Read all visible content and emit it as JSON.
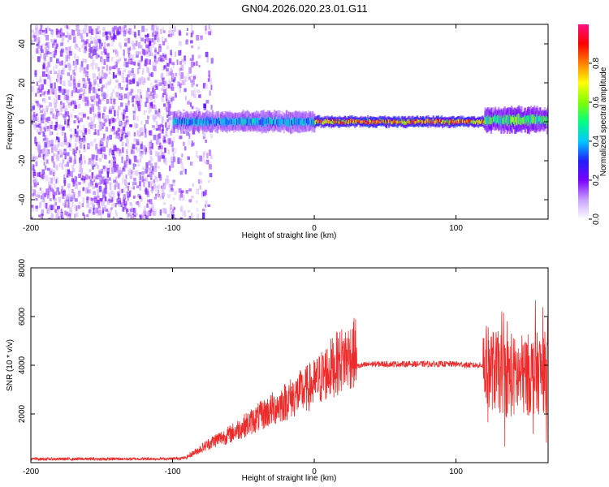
{
  "title": "GN04.2026.020.23.01.G11",
  "chart_data": [
    {
      "type": "heatmap",
      "name": "spectrogram",
      "xlabel": "Height of straight line (km)",
      "ylabel": "Frequency (Hz)",
      "xlim": [
        -200,
        165
      ],
      "ylim": [
        -50,
        50
      ],
      "xticks": [
        -200,
        -100,
        0,
        100
      ],
      "yticks": [
        -40,
        -20,
        0,
        20,
        40
      ],
      "colorbar": {
        "label": "Normalized spectral amplitude",
        "range": [
          0,
          1
        ],
        "ticks": [
          "0.0",
          "0.2",
          "0.4",
          "0.6",
          "0.8"
        ],
        "colormap": [
          "#ffffff",
          "#c8a0ff",
          "#7a00ff",
          "#2020ff",
          "#00c8ff",
          "#00ff80",
          "#80ff00",
          "#ffff00",
          "#ff8000",
          "#ff0000",
          "#ff1080"
        ]
      },
      "regions": [
        {
          "x_from": -200,
          "x_to": -100,
          "description": "broadband noise",
          "amplitude": 0.1
        },
        {
          "x_from": -100,
          "x_to": -75,
          "description": "fading noise",
          "amplitude": 0.05
        },
        {
          "x_from": -100,
          "x_to": 0,
          "center_hz": 0,
          "halfwidth_hz": 4,
          "amplitude": 0.45
        },
        {
          "x_from": 0,
          "x_to": 120,
          "center_hz": 0,
          "halfwidth_hz": 2,
          "amplitude": 0.9
        },
        {
          "x_from": 120,
          "x_to": 165,
          "center_hz": 1,
          "halfwidth_hz": 5,
          "amplitude": 0.6
        }
      ]
    },
    {
      "type": "line",
      "name": "snr",
      "xlabel": "Height of straight line (km)",
      "ylabel": "SNR (10 * v/v)",
      "xlim": [
        -200,
        165
      ],
      "ylim": [
        0,
        8000
      ],
      "xticks": [
        -200,
        -100,
        0,
        100
      ],
      "yticks": [
        2000,
        4000,
        6000,
        8000
      ],
      "color": "#ee2b2b",
      "series": [
        {
          "name": "SNR",
          "x": [
            -200,
            -150,
            -100,
            -90,
            -80,
            -70,
            -60,
            -50,
            -40,
            -30,
            -20,
            -10,
            0,
            10,
            20,
            30,
            40,
            60,
            80,
            100,
            110,
            119,
            120,
            130,
            140,
            150,
            160,
            165
          ],
          "y": [
            150,
            150,
            160,
            200,
            500,
            800,
            1000,
            1300,
            1600,
            1900,
            2200,
            2500,
            2800,
            3300,
            3700,
            3950,
            4050,
            4050,
            4050,
            4050,
            4000,
            4000,
            4000,
            3700,
            3500,
            3600,
            3700,
            3700
          ]
        }
      ]
    }
  ]
}
